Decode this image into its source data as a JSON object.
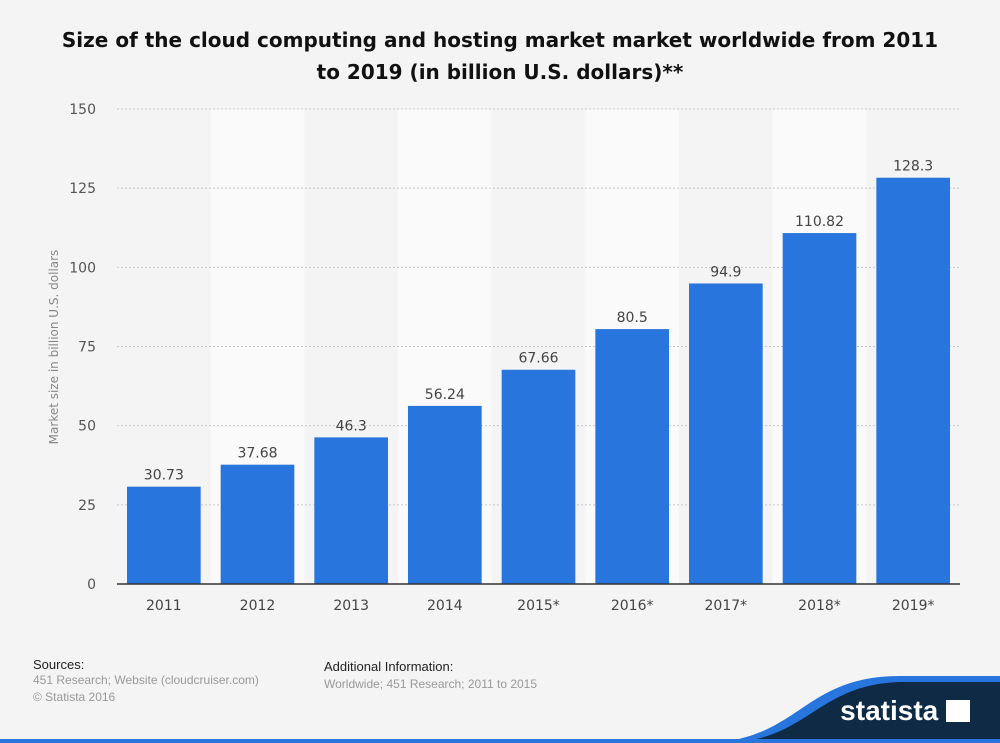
{
  "chart_data": {
    "type": "bar",
    "title": "Size of the cloud computing and hosting market market worldwide from 2011 to 2019 (in billion U.S. dollars)**",
    "ylabel": "Market size in billion U.S. dollars",
    "xlabel": "",
    "categories": [
      "2011",
      "2012",
      "2013",
      "2014",
      "2015*",
      "2016*",
      "2017*",
      "2018*",
      "2019*"
    ],
    "values": [
      30.73,
      37.68,
      46.3,
      56.24,
      67.66,
      80.5,
      94.9,
      110.82,
      128.3
    ],
    "labels": [
      "30.73",
      "37.68",
      "46.3",
      "56.24",
      "67.66",
      "80.5",
      "94.9",
      "110.82",
      "128.3"
    ],
    "ylim": [
      0,
      150
    ],
    "yticks": [
      "0",
      "25",
      "50",
      "75",
      "100",
      "125",
      "150"
    ],
    "grid": true,
    "bar_color": "#2876dd"
  },
  "footer": {
    "sources_label": "Sources:",
    "sources_text": "451 Research; Website (cloudcruiser.com)",
    "copyright": "© Statista 2016",
    "additional_label": "Additional Information:",
    "additional_text": "Worldwide; 451 Research; 2011 to 2015",
    "brand": "statista"
  }
}
